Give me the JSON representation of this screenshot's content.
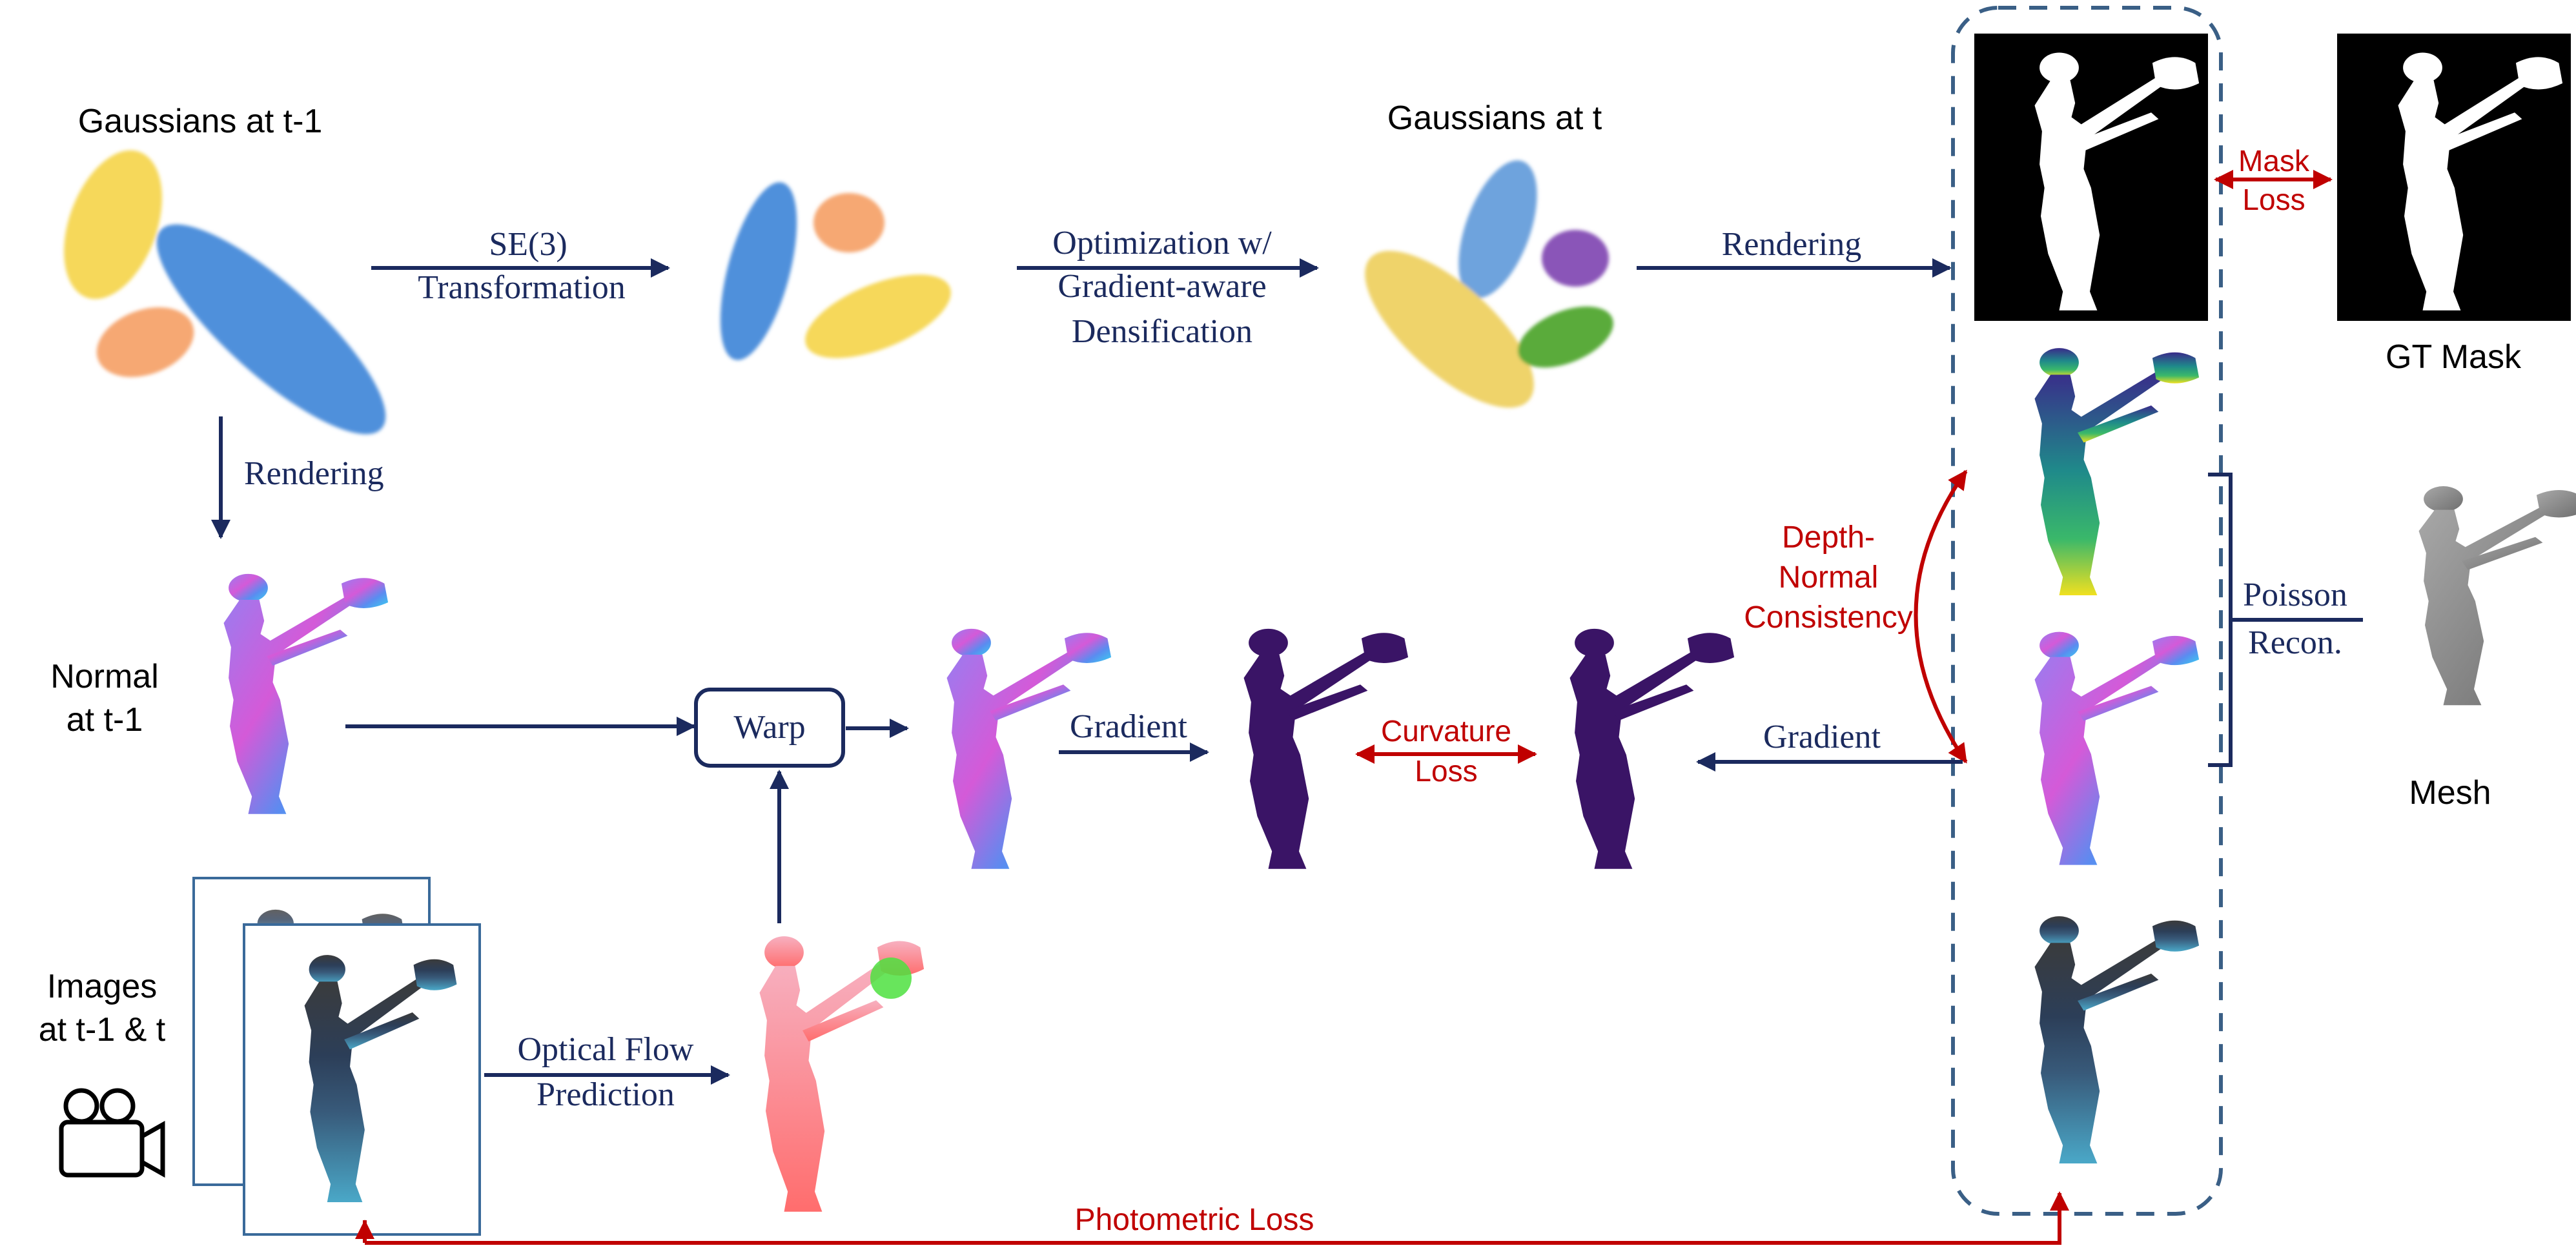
{
  "labels": {
    "gaussians_prev": "Gaussians at t-1",
    "gaussians_curr": "Gaussians at t",
    "normal_line1": "Normal",
    "normal_line2": "at t-1",
    "images_line1": "Images",
    "images_line2": "at t-1 & t",
    "gt_mask": "GT Mask",
    "mesh": "Mesh"
  },
  "operations": {
    "se3_line1": "SE(3)",
    "se3_line2": "Transformation",
    "optimization_line1": "Optimization w/",
    "optimization_line2": "Gradient-aware",
    "optimization_line3": "Densification",
    "rendering_top": "Rendering",
    "rendering_down": "Rendering",
    "warp": "Warp",
    "gradient_left": "Gradient",
    "gradient_right": "Gradient",
    "optical_flow_line1": "Optical Flow",
    "optical_flow_line2": "Prediction",
    "poisson_line1": "Poisson",
    "poisson_line2": "Recon."
  },
  "losses": {
    "mask_line1": "Mask",
    "mask_line2": "Loss",
    "depth_normal_line1": "Depth-",
    "depth_normal_line2": "Normal",
    "depth_normal_line3": "Consistency",
    "curvature_line1": "Curvature",
    "curvature_line2": "Loss",
    "photometric": "Photometric Loss"
  },
  "icons": [
    "video-camera-icon"
  ],
  "colors": {
    "arrow_navy": "#1b2a5e",
    "loss_red": "#c00000",
    "dashed_box": "#3a5f86",
    "gaussian_yellow": "#f6d85a",
    "gaussian_blue": "#4f90db",
    "gaussian_orange": "#f6a873",
    "gaussian_purple": "#8a55b8",
    "gaussian_green": "#5aab3a",
    "silhouette_dark": "#3a1466"
  }
}
